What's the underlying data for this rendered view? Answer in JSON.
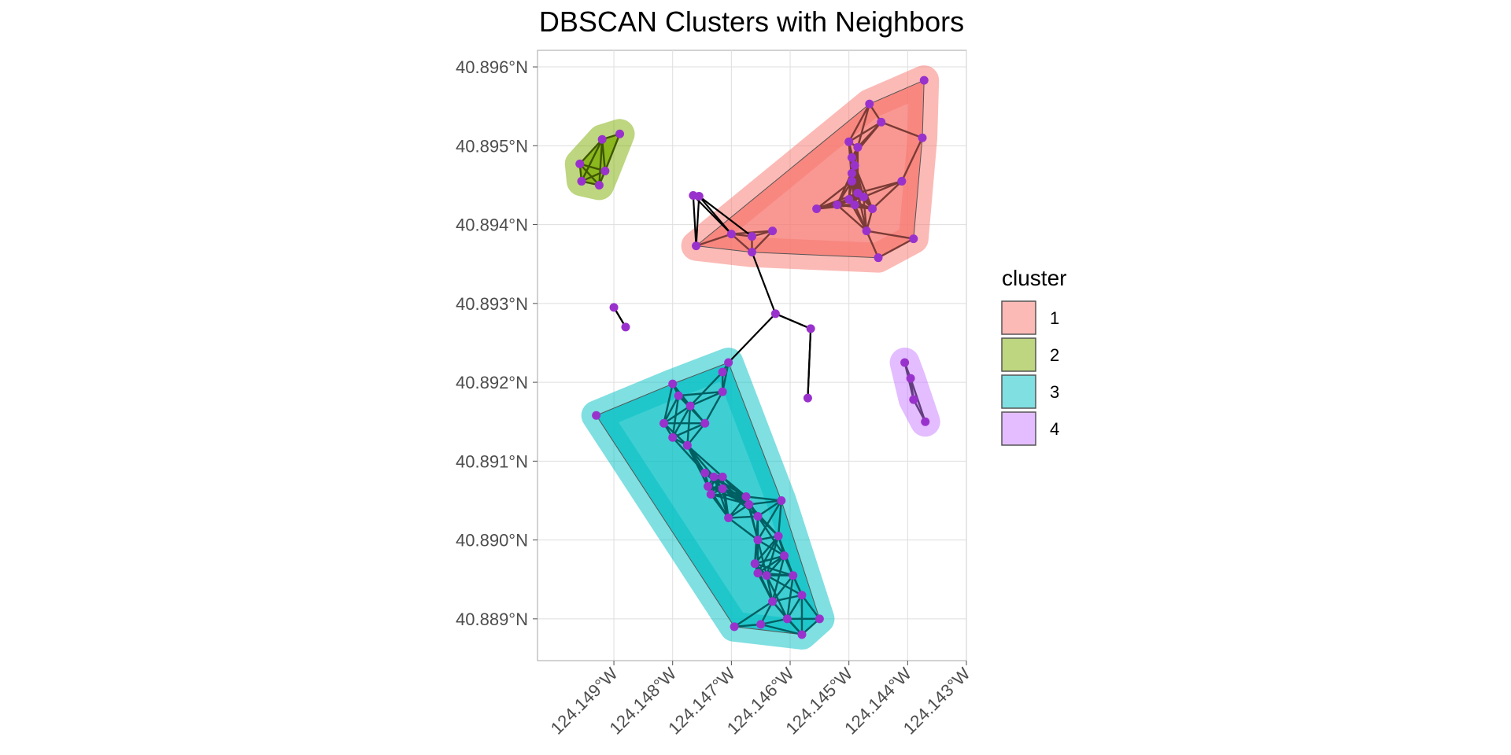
{
  "chart_data": {
    "type": "scatter",
    "title": "DBSCAN Clusters with Neighbors",
    "xlabel": "",
    "ylabel": "",
    "x_range": [
      -124.1503,
      -124.143
    ],
    "y_range": [
      40.88847,
      40.89621
    ],
    "x_ticks": [
      -124.149,
      -124.148,
      -124.147,
      -124.146,
      -124.145,
      -124.144,
      -124.143
    ],
    "x_tick_labels": [
      "124.149°W",
      "124.148°W",
      "124.147°W",
      "124.146°W",
      "124.145°W",
      "124.144°W",
      "124.143°W"
    ],
    "y_ticks": [
      40.896,
      40.895,
      40.894,
      40.893,
      40.892,
      40.891,
      40.89,
      40.889
    ],
    "y_tick_labels": [
      "40.896°N",
      "40.895°N",
      "40.894°N",
      "40.893°N",
      "40.892°N",
      "40.891°N",
      "40.890°N",
      "40.889°N"
    ],
    "grid": true,
    "point_color": "#9932CC",
    "legend": {
      "title": "cluster",
      "position": "right",
      "entries": [
        {
          "label": "1",
          "fill": "#F8766D",
          "edge_color": "#7B3B36"
        },
        {
          "label": "2",
          "fill": "#7CAE00",
          "edge_color": "#3E5700"
        },
        {
          "label": "3",
          "fill": "#00BFC4",
          "edge_color": "#005F62"
        },
        {
          "label": "4",
          "fill": "#C77CFF",
          "edge_color": "#633E7F"
        }
      ]
    },
    "clusters": [
      {
        "id": "1",
        "points": [
          [
            -124.14372,
            40.89583
          ],
          [
            -124.14465,
            40.89553
          ],
          [
            -124.14445,
            40.8953
          ],
          [
            -124.14375,
            40.8951
          ],
          [
            -124.145,
            40.89505
          ],
          [
            -124.14485,
            40.89498
          ],
          [
            -124.14495,
            40.89485
          ],
          [
            -124.1449,
            40.89475
          ],
          [
            -124.14495,
            40.89465
          ],
          [
            -124.1441,
            40.89455
          ],
          [
            -124.14495,
            40.89455
          ],
          [
            -124.14485,
            40.8944
          ],
          [
            -124.14475,
            40.89435
          ],
          [
            -124.145,
            40.89432
          ],
          [
            -124.1452,
            40.89425
          ],
          [
            -124.1449,
            40.89425
          ],
          [
            -124.1446,
            40.8942
          ],
          [
            -124.14555,
            40.8942
          ],
          [
            -124.1463,
            40.89392
          ],
          [
            -124.1447,
            40.89392
          ],
          [
            -124.1439,
            40.89382
          ],
          [
            -124.147,
            40.89388
          ],
          [
            -124.14665,
            40.89385
          ],
          [
            -124.1476,
            40.89373
          ],
          [
            -124.14665,
            40.89365
          ],
          [
            -124.1445,
            40.89358
          ]
        ]
      },
      {
        "id": "2",
        "points": [
          [
            -124.1489,
            40.89515
          ],
          [
            -124.1492,
            40.89508
          ],
          [
            -124.14958,
            40.89477
          ],
          [
            -124.14915,
            40.89468
          ],
          [
            -124.14955,
            40.89455
          ],
          [
            -124.14925,
            40.8945
          ]
        ]
      },
      {
        "id": "3",
        "points": [
          [
            -124.14705,
            40.89225
          ],
          [
            -124.14715,
            40.89213
          ],
          [
            -124.148,
            40.89198
          ],
          [
            -124.1479,
            40.89183
          ],
          [
            -124.14715,
            40.89188
          ],
          [
            -124.1477,
            40.8917
          ],
          [
            -124.1493,
            40.89158
          ],
          [
            -124.14815,
            40.89148
          ],
          [
            -124.14745,
            40.89148
          ],
          [
            -124.148,
            40.8913
          ],
          [
            -124.14775,
            40.8912
          ],
          [
            -124.14745,
            40.89085
          ],
          [
            -124.1473,
            40.8908
          ],
          [
            -124.14715,
            40.8908
          ],
          [
            -124.1474,
            40.89068
          ],
          [
            -124.14715,
            40.89065
          ],
          [
            -124.14735,
            40.89058
          ],
          [
            -124.14675,
            40.89055
          ],
          [
            -124.14615,
            40.8905
          ],
          [
            -124.1467,
            40.89045
          ],
          [
            -124.14655,
            40.8903
          ],
          [
            -124.14705,
            40.89028
          ],
          [
            -124.1462,
            40.89005
          ],
          [
            -124.14655,
            40.89
          ],
          [
            -124.1461,
            40.8898
          ],
          [
            -124.1466,
            40.8897
          ],
          [
            -124.14655,
            40.88958
          ],
          [
            -124.1464,
            40.88955
          ],
          [
            -124.14595,
            40.88955
          ],
          [
            -124.1458,
            40.8893
          ],
          [
            -124.1463,
            40.88922
          ],
          [
            -124.1455,
            40.889
          ],
          [
            -124.14605,
            40.889
          ],
          [
            -124.1465,
            40.88893
          ],
          [
            -124.14695,
            40.8889
          ],
          [
            -124.1458,
            40.8888
          ]
        ]
      },
      {
        "id": "4",
        "points": [
          [
            -124.14405,
            40.89225
          ],
          [
            -124.14395,
            40.89205
          ],
          [
            -124.1439,
            40.89178
          ],
          [
            -124.1437,
            40.8915
          ]
        ]
      }
    ],
    "noise_points": [
      [
        -124.14755,
        40.89436
      ],
      [
        -124.14765,
        40.89437
      ],
      [
        -124.14625,
        40.89287
      ],
      [
        -124.14565,
        40.89268
      ],
      [
        -124.149,
        40.89295
      ],
      [
        -124.1488,
        40.8927
      ],
      [
        -124.1457,
        40.8918
      ]
    ]
  }
}
